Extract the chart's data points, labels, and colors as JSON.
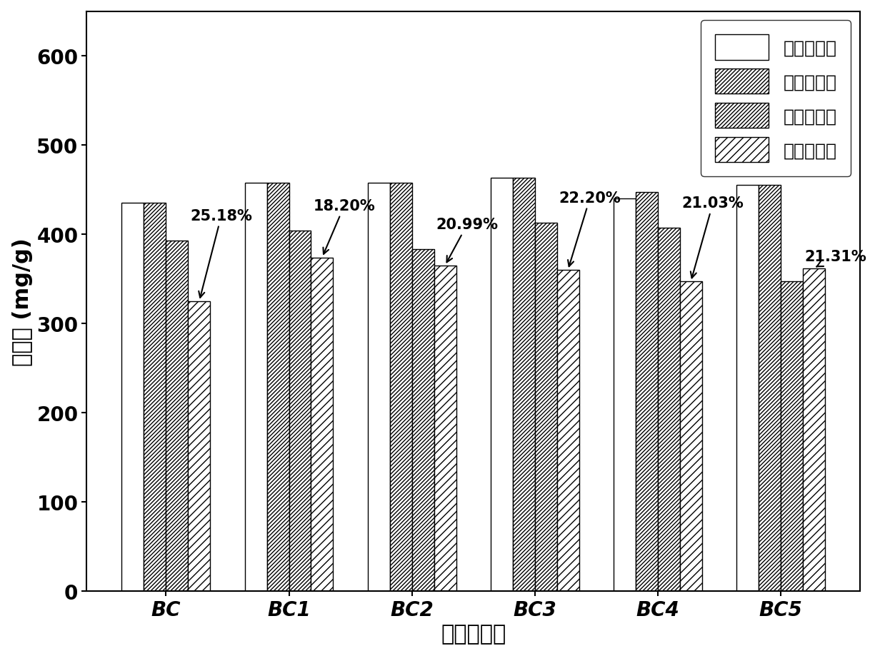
{
  "categories": [
    "BC",
    "BC1",
    "BC2",
    "BC3",
    "BC4",
    "BC5"
  ],
  "series": {
    "第一次吸附": [
      435,
      458,
      458,
      463,
      440,
      455
    ],
    "第二次吸附": [
      435,
      458,
      458,
      463,
      447,
      455
    ],
    "第三次吸附": [
      393,
      404,
      383,
      413,
      407,
      347
    ],
    "第四次吸附": [
      325,
      374,
      365,
      360,
      347,
      362
    ]
  },
  "percentages": [
    "25.18%",
    "18.20%",
    "20.99%",
    "22.20%",
    "21.03%",
    "21.31%"
  ],
  "ylabel": "吸附量 (mg/g)",
  "xlabel": "改性生物炭",
  "ylim": [
    0,
    650
  ],
  "yticks": [
    0,
    100,
    200,
    300,
    400,
    500,
    600
  ],
  "legend_labels": [
    "第一次吸附",
    "第二次吸附",
    "第三次吸附",
    "第四次吸附"
  ],
  "hatch_patterns": [
    "",
    "////",
    "////",
    "////"
  ],
  "bar_width": 0.18,
  "label_fontsize": 22,
  "tick_fontsize": 20,
  "legend_fontsize": 18,
  "annot_fontsize": 15
}
